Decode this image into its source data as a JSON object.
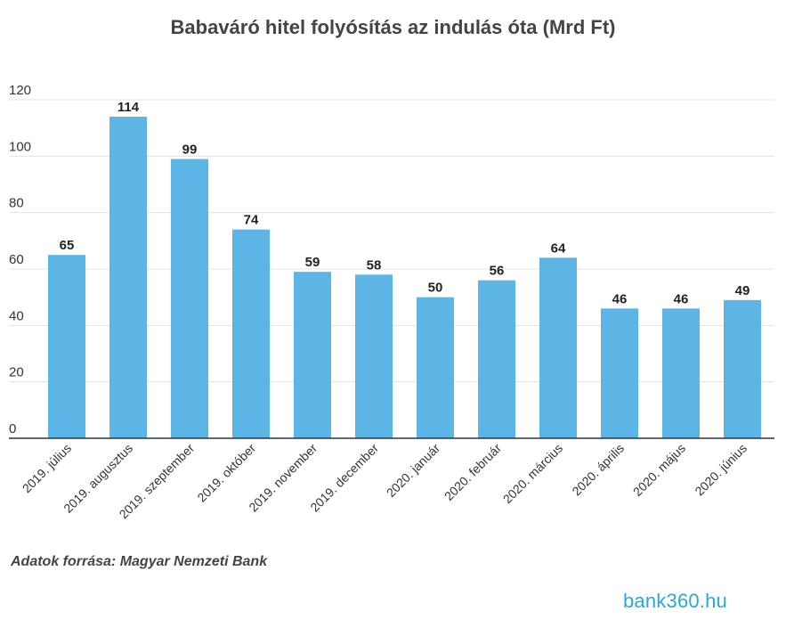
{
  "chart_data": {
    "type": "bar",
    "title": "Babaváró hitel folyósítás az indulás óta (Mrd Ft)",
    "xlabel": "",
    "ylabel": "",
    "categories": [
      "2019. július",
      "2019. augusztus",
      "2019. szeptember",
      "2019. október",
      "2019. november",
      "2019. december",
      "2020. január",
      "2020. február",
      "2020. március",
      "2020. április",
      "2020. május",
      "2020. június"
    ],
    "values": [
      65,
      114,
      99,
      74,
      59,
      58,
      50,
      56,
      64,
      46,
      46,
      49
    ],
    "ylim": [
      0,
      120
    ],
    "yticks": [
      0,
      20,
      40,
      60,
      80,
      100,
      120
    ],
    "grid": true,
    "legend": "none",
    "bar_color": "#5db5e5"
  },
  "source": "Adatok forrása: Magyar Nemzeti Bank",
  "brand": "bank360.hu",
  "colors": {
    "bar": "#5db5e5",
    "brand": "#2aa7d8",
    "grid": "#e3e3e3",
    "axis": "#333333"
  }
}
